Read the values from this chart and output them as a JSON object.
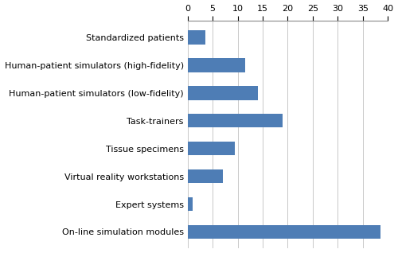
{
  "categories": [
    "On-line simulation modules",
    "Expert systems",
    "Virtual reality workstations",
    "Tissue specimens",
    "Task-trainers",
    "Human-patient simulators (low-fidelity)",
    "Human-patient simulators (high-fidelity)",
    "Standardized patients"
  ],
  "values": [
    38.5,
    1.0,
    7.0,
    9.5,
    19.0,
    14.0,
    11.5,
    3.5
  ],
  "bar_color": "#4e7db5",
  "xlim": [
    0,
    40
  ],
  "xticks": [
    0,
    5,
    10,
    15,
    20,
    25,
    30,
    35,
    40
  ],
  "bar_height": 0.5,
  "background_color": "#ffffff",
  "grid_color": "#c8c8c8",
  "tick_label_fontsize": 8.0,
  "ylabel_fontsize": 8.0
}
